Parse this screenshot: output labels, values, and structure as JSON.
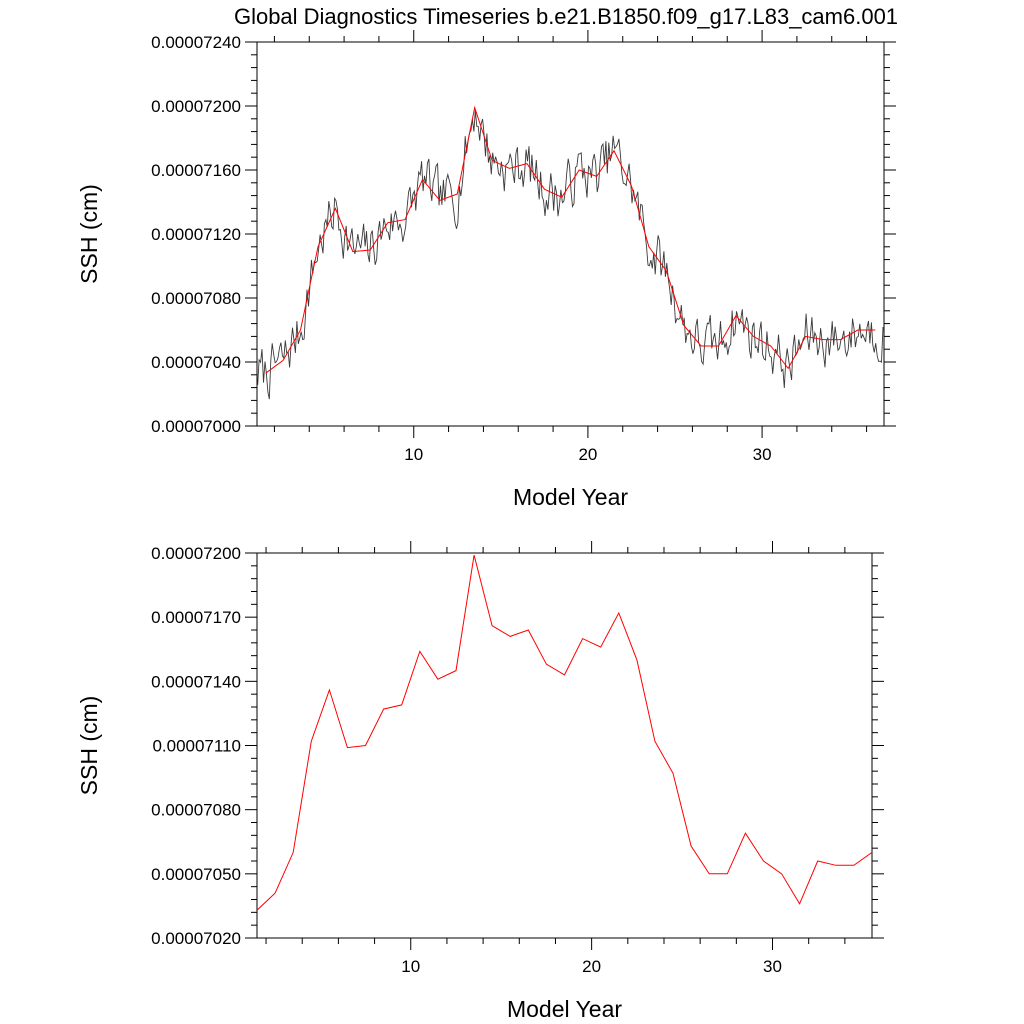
{
  "figure": {
    "title": "Global Diagnostics Timeseries b.e21.B1850.f09_g17.L83_cam6.001"
  },
  "colors": {
    "monthly_line": "#3a3a3a",
    "annual_line": "#ff0000",
    "frame": "#000000",
    "background": "#ffffff"
  },
  "chart_data": [
    {
      "type": "line",
      "title": "Global Diagnostics Timeseries b.e21.B1850.f09_g17.L83_cam6.001",
      "xlabel": "Model Year",
      "ylabel": "SSH (cm)",
      "xlim": [
        1,
        37
      ],
      "ylim": [
        7e-05,
        7.24e-05
      ],
      "xticks": [
        10,
        20,
        30
      ],
      "xtick_labels": [
        "10",
        "20",
        "30"
      ],
      "yticks": [
        7e-05,
        7.04e-05,
        7.08e-05,
        7.12e-05,
        7.16e-05,
        7.2e-05,
        7.24e-05
      ],
      "ytick_labels": [
        "0.00007000",
        "0.00007040",
        "0.00007080",
        "0.00007120",
        "0.00007160",
        "0.00007200",
        "0.00007240"
      ],
      "grid": false,
      "series": [
        {
          "kind": "monthly",
          "color": "#3a3a3a",
          "note_seed": 7,
          "x_start": 1.04,
          "x_step": 0.0833,
          "n": 432,
          "noise_amplitude": 1e-07
        },
        {
          "kind": "annual",
          "color": "#ff0000",
          "x": [
            1.5,
            2.5,
            3.5,
            4.5,
            5.5,
            6.5,
            7.5,
            8.5,
            9.5,
            10.5,
            11.5,
            12.5,
            13.5,
            14.5,
            15.5,
            16.5,
            17.5,
            18.5,
            19.5,
            20.5,
            21.5,
            22.5,
            23.5,
            24.5,
            25.5,
            26.5,
            27.5,
            28.5,
            29.5,
            30.5,
            31.5,
            32.5,
            33.5,
            34.5,
            35.5,
            36.5
          ],
          "y": [
            7.033e-05,
            7.041e-05,
            7.06e-05,
            7.112e-05,
            7.136e-05,
            7.109e-05,
            7.11e-05,
            7.127e-05,
            7.129e-05,
            7.154e-05,
            7.141e-05,
            7.145e-05,
            7.199e-05,
            7.166e-05,
            7.161e-05,
            7.164e-05,
            7.148e-05,
            7.143e-05,
            7.16e-05,
            7.156e-05,
            7.172e-05,
            7.15e-05,
            7.112e-05,
            7.097e-05,
            7.063e-05,
            7.05e-05,
            7.05e-05,
            7.069e-05,
            7.056e-05,
            7.05e-05,
            7.036e-05,
            7.056e-05,
            7.054e-05,
            7.054e-05,
            7.06e-05,
            7.06e-05
          ]
        }
      ]
    },
    {
      "type": "line",
      "title": "",
      "xlabel": "Model Year",
      "ylabel": "SSH (cm)",
      "xlim": [
        1.5,
        35.5
      ],
      "ylim": [
        7.02e-05,
        7.2e-05
      ],
      "xticks": [
        10,
        20,
        30
      ],
      "xtick_labels": [
        "10",
        "20",
        "30"
      ],
      "yticks": [
        7.02e-05,
        7.05e-05,
        7.08e-05,
        7.11e-05,
        7.14e-05,
        7.17e-05,
        7.2e-05
      ],
      "ytick_labels": [
        "0.00007020",
        "0.00007050",
        "0.00007080",
        "0.00007110",
        "0.00007140",
        "0.00007170",
        "0.00007200"
      ],
      "grid": false,
      "series": [
        {
          "kind": "annual",
          "color": "#ff0000",
          "x": [
            1.5,
            2.5,
            3.5,
            4.5,
            5.5,
            6.5,
            7.5,
            8.5,
            9.5,
            10.5,
            11.5,
            12.5,
            13.5,
            14.5,
            15.5,
            16.5,
            17.5,
            18.5,
            19.5,
            20.5,
            21.5,
            22.5,
            23.5,
            24.5,
            25.5,
            26.5,
            27.5,
            28.5,
            29.5,
            30.5,
            31.5,
            32.5,
            33.5,
            34.5,
            35.5
          ],
          "y": [
            7.033e-05,
            7.041e-05,
            7.06e-05,
            7.112e-05,
            7.136e-05,
            7.109e-05,
            7.11e-05,
            7.127e-05,
            7.129e-05,
            7.154e-05,
            7.141e-05,
            7.145e-05,
            7.199e-05,
            7.166e-05,
            7.161e-05,
            7.164e-05,
            7.148e-05,
            7.143e-05,
            7.16e-05,
            7.156e-05,
            7.172e-05,
            7.15e-05,
            7.112e-05,
            7.097e-05,
            7.063e-05,
            7.05e-05,
            7.05e-05,
            7.069e-05,
            7.056e-05,
            7.05e-05,
            7.036e-05,
            7.056e-05,
            7.054e-05,
            7.054e-05,
            7.06e-05
          ]
        }
      ]
    }
  ]
}
